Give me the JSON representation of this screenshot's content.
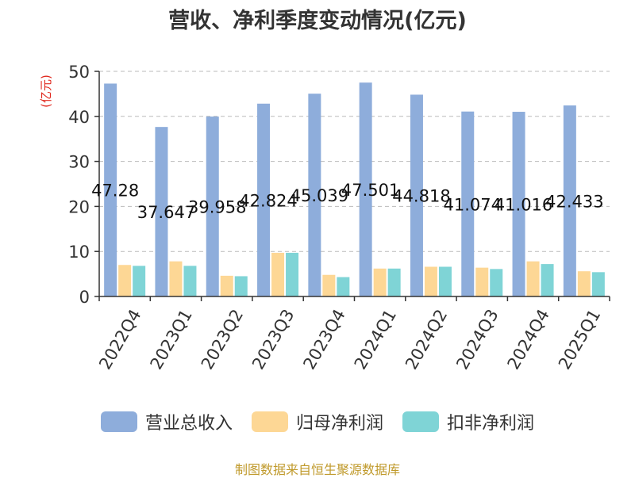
{
  "title": "营收、净利季度变动情况(亿元)",
  "source_note": "制图数据来自恒生聚源数据库",
  "colors": {
    "revenue": "#8EADDB",
    "net_profit": "#FDD795",
    "deducted_profit": "#7FD4D6",
    "ylabel": "#E0281E",
    "source": "#C09A2C"
  },
  "chart_data": {
    "type": "bar",
    "title": "营收、净利季度变动情况(亿元)",
    "ylabel": "(亿元)",
    "xlabel": "",
    "ylim": [
      0,
      50
    ],
    "yticks": [
      0,
      10,
      20,
      30,
      40,
      50
    ],
    "grid": true,
    "legend_position": "bottom",
    "categories": [
      "2022Q4",
      "2023Q1",
      "2023Q2",
      "2023Q3",
      "2023Q4",
      "2024Q1",
      "2024Q2",
      "2024Q3",
      "2024Q4",
      "2025Q1"
    ],
    "series": [
      {
        "name": "营业总收入",
        "values": [
          47.28,
          37.647,
          39.958,
          42.824,
          45.039,
          47.501,
          44.818,
          41.074,
          41.016,
          42.433
        ],
        "labels": [
          "47.28",
          "37.647",
          "39.958",
          "42.824",
          "45.039",
          "47.501",
          "44.818",
          "41.074",
          "41.016",
          "42.433"
        ]
      },
      {
        "name": "归母净利润",
        "values": [
          7.0,
          7.8,
          4.6,
          9.7,
          4.8,
          6.2,
          6.6,
          6.4,
          7.8,
          5.6
        ]
      },
      {
        "name": "扣非净利润",
        "values": [
          6.8,
          6.8,
          4.5,
          9.7,
          4.3,
          6.2,
          6.6,
          6.1,
          7.2,
          5.4
        ]
      }
    ]
  }
}
